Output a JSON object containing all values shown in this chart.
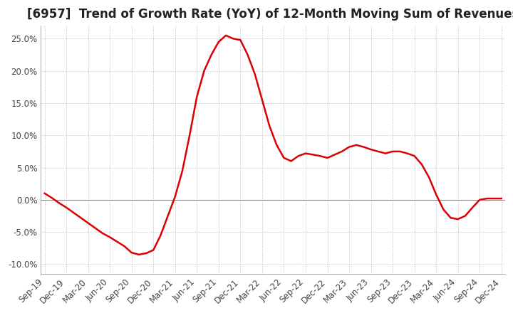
{
  "title": "[6957]  Trend of Growth Rate (YoY) of 12-Month Moving Sum of Revenues",
  "line_color": "#dd0000",
  "background_color": "#ffffff",
  "grid_color": "#bbbbbb",
  "ylim": [
    -0.115,
    0.27
  ],
  "yticks": [
    -0.1,
    -0.05,
    0.0,
    0.05,
    0.1,
    0.15,
    0.2,
    0.25
  ],
  "ytick_labels": [
    "-10.0%",
    "-5.0%",
    "0.0%",
    "5.0%",
    "10.0%",
    "15.0%",
    "20.0%",
    "25.0%"
  ],
  "values": [
    0.01,
    0.003,
    -0.005,
    -0.012,
    -0.02,
    -0.028,
    -0.036,
    -0.044,
    -0.052,
    -0.058,
    -0.065,
    -0.072,
    -0.082,
    -0.085,
    -0.083,
    -0.078,
    -0.055,
    -0.025,
    0.005,
    0.045,
    0.1,
    0.16,
    0.2,
    0.225,
    0.245,
    0.255,
    0.25,
    0.248,
    0.225,
    0.195,
    0.155,
    0.115,
    0.085,
    0.065,
    0.06,
    0.068,
    0.072,
    0.07,
    0.068,
    0.065,
    0.07,
    0.075,
    0.082,
    0.085,
    0.082,
    0.078,
    0.075,
    0.072,
    0.075,
    0.075,
    0.072,
    0.068,
    0.055,
    0.035,
    0.008,
    -0.015,
    -0.028,
    -0.03,
    -0.025,
    -0.012,
    0.0,
    0.002,
    0.002,
    0.002
  ],
  "xtick_positions": [
    0,
    3,
    6,
    9,
    12,
    15,
    18,
    21,
    24,
    27,
    30,
    33,
    36,
    39,
    42,
    45,
    48,
    51,
    54,
    57,
    60,
    63
  ],
  "xtick_labels": [
    "Sep-19",
    "Dec-19",
    "Mar-20",
    "Jun-20",
    "Sep-20",
    "Dec-20",
    "Mar-21",
    "Jun-21",
    "Sep-21",
    "Dec-21",
    "Mar-22",
    "Jun-22",
    "Sep-22",
    "Dec-22",
    "Mar-23",
    "Jun-23",
    "Sep-23",
    "Dec-23",
    "Mar-24",
    "Jun-24",
    "Sep-24",
    "Dec-24"
  ],
  "title_fontsize": 12,
  "tick_fontsize": 8.5
}
